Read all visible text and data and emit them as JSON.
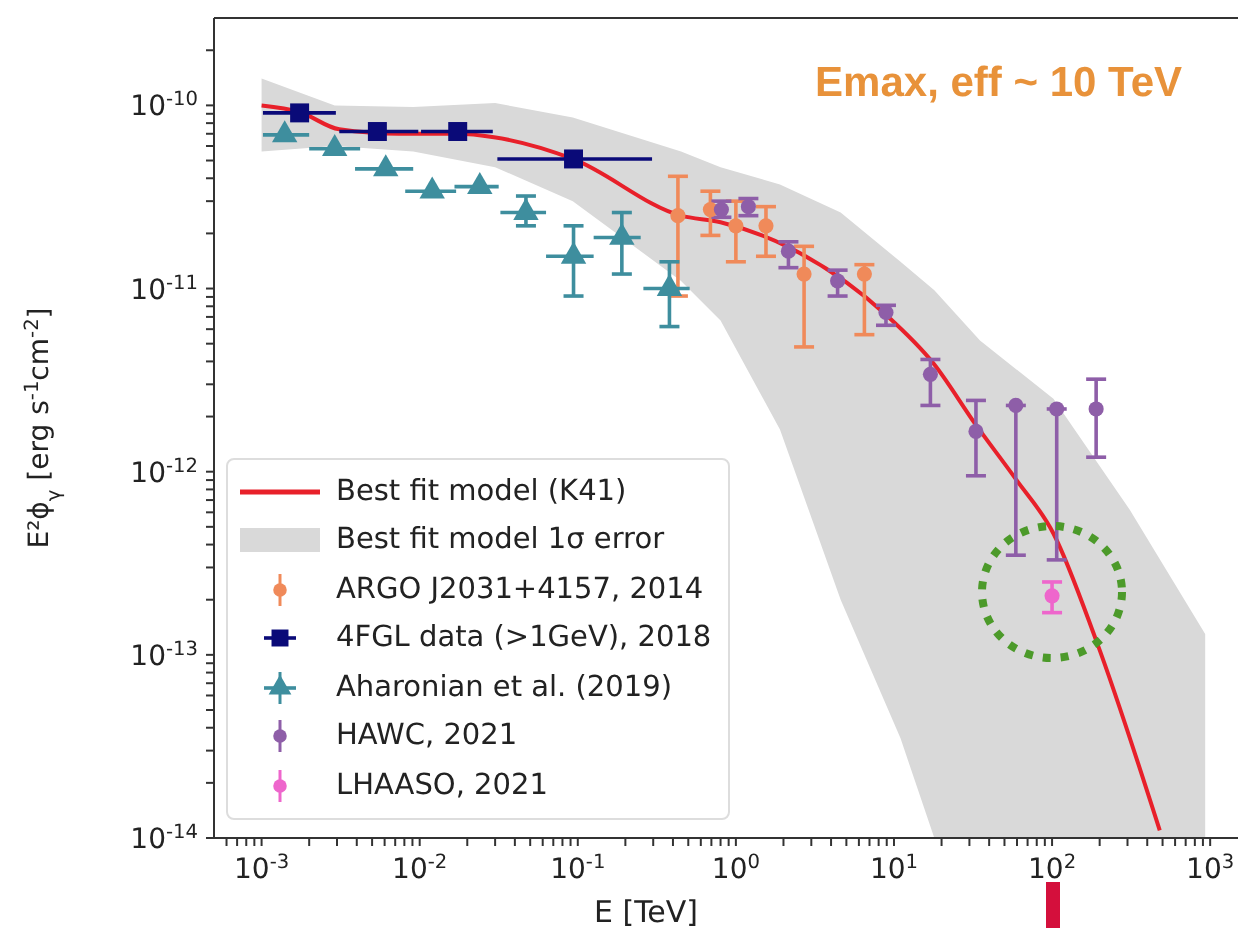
{
  "chart_data": {
    "type": "scatter",
    "xlabel": "E [TeV]",
    "ylabel": "E²ϕ$_{γ}$ [erg s$^{-1}$cm$^{-2}$]",
    "log": "xy",
    "legend": "bottom left",
    "annotations": [
      "Emax, eff ~ 10 TeV"
    ],
    "xlim": [
      0.0005,
      1500
    ],
    "ylim": [
      1e-14,
      3e-10
    ],
    "xticks": [
      {
        "value": 0.0006,
        "label": null
      },
      {
        "value": 0.0007,
        "label": null
      },
      {
        "value": 0.0008,
        "label": null
      },
      {
        "value": 0.0009,
        "label": null
      },
      {
        "value": 0.001,
        "label": "10$^{-3}$"
      },
      {
        "value": 0.002,
        "label": null
      },
      {
        "value": 0.003,
        "label": null
      },
      {
        "value": 0.004,
        "label": null
      },
      {
        "value": 0.005,
        "label": null
      },
      {
        "value": 0.006,
        "label": null
      },
      {
        "value": 0.007,
        "label": null
      },
      {
        "value": 0.008,
        "label": null
      },
      {
        "value": 0.009,
        "label": null
      },
      {
        "value": 0.01,
        "label": "10$^{-2}$"
      },
      {
        "value": 0.02,
        "label": null
      },
      {
        "value": 0.03,
        "label": null
      },
      {
        "value": 0.04,
        "label": null
      },
      {
        "value": 0.05,
        "label": null
      },
      {
        "value": 0.06,
        "label": null
      },
      {
        "value": 0.07,
        "label": null
      },
      {
        "value": 0.08,
        "label": null
      },
      {
        "value": 0.09,
        "label": null
      },
      {
        "value": 0.1,
        "label": "10$^{-1}$"
      },
      {
        "value": 0.2,
        "label": null
      },
      {
        "value": 0.3,
        "label": null
      },
      {
        "value": 0.4,
        "label": null
      },
      {
        "value": 0.5,
        "label": null
      },
      {
        "value": 0.6,
        "label": null
      },
      {
        "value": 0.7,
        "label": null
      },
      {
        "value": 0.8,
        "label": null
      },
      {
        "value": 0.9,
        "label": null
      },
      {
        "value": 1,
        "label": "10$^{0}$"
      },
      {
        "value": 2,
        "label": null
      },
      {
        "value": 3,
        "label": null
      },
      {
        "value": 4,
        "label": null
      },
      {
        "value": 5,
        "label": null
      },
      {
        "value": 6,
        "label": null
      },
      {
        "value": 7,
        "label": null
      },
      {
        "value": 8,
        "label": null
      },
      {
        "value": 9,
        "label": null
      },
      {
        "value": 10,
        "label": "10$^{1}$"
      },
      {
        "value": 20,
        "label": null
      },
      {
        "value": 30,
        "label": null
      },
      {
        "value": 40,
        "label": null
      },
      {
        "value": 50,
        "label": null
      },
      {
        "value": 60,
        "label": null
      },
      {
        "value": 70,
        "label": null
      },
      {
        "value": 80,
        "label": null
      },
      {
        "value": 90,
        "label": null
      },
      {
        "value": 100,
        "label": "10$^{2}$"
      },
      {
        "value": 200,
        "label": null
      },
      {
        "value": 300,
        "label": null
      },
      {
        "value": 400,
        "label": null
      },
      {
        "value": 500,
        "label": null
      },
      {
        "value": 600,
        "label": null
      },
      {
        "value": 700,
        "label": null
      },
      {
        "value": 800,
        "label": null
      },
      {
        "value": 900,
        "label": null
      },
      {
        "value": 1000,
        "label": "10$^{3}$"
      }
    ],
    "yticks": [
      {
        "value": 1e-14,
        "label": "10$^{-14}$"
      },
      {
        "value": 2e-14,
        "label": null
      },
      {
        "value": 3e-14,
        "label": null
      },
      {
        "value": 4e-14,
        "label": null
      },
      {
        "value": 5e-14,
        "label": null
      },
      {
        "value": 6e-14,
        "label": null
      },
      {
        "value": 7e-14,
        "label": null
      },
      {
        "value": 8e-14,
        "label": null
      },
      {
        "value": 9e-14,
        "label": null
      },
      {
        "value": 1e-13,
        "label": "10$^{-13}$"
      },
      {
        "value": 2e-13,
        "label": null
      },
      {
        "value": 3e-13,
        "label": null
      },
      {
        "value": 4e-13,
        "label": null
      },
      {
        "value": 5e-13,
        "label": null
      },
      {
        "value": 6e-13,
        "label": null
      },
      {
        "value": 7e-13,
        "label": null
      },
      {
        "value": 8e-13,
        "label": null
      },
      {
        "value": 9e-13,
        "label": null
      },
      {
        "value": 1e-12,
        "label": "10$^{-12}$"
      },
      {
        "value": 2e-12,
        "label": null
      },
      {
        "value": 3e-12,
        "label": null
      },
      {
        "value": 4e-12,
        "label": null
      },
      {
        "value": 5e-12,
        "label": null
      },
      {
        "value": 6e-12,
        "label": null
      },
      {
        "value": 7e-12,
        "label": null
      },
      {
        "value": 8e-12,
        "label": null
      },
      {
        "value": 9e-12,
        "label": null
      },
      {
        "value": 1e-11,
        "label": "10$^{-11}$"
      },
      {
        "value": 2e-11,
        "label": null
      },
      {
        "value": 3e-11,
        "label": null
      },
      {
        "value": 4e-11,
        "label": null
      },
      {
        "value": 5e-11,
        "label": null
      },
      {
        "value": 6e-11,
        "label": null
      },
      {
        "value": 7e-11,
        "label": null
      },
      {
        "value": 8e-11,
        "label": null
      },
      {
        "value": 9e-11,
        "label": null
      },
      {
        "value": 1e-10,
        "label": "10$^{-10}$"
      },
      {
        "value": 2e-10,
        "label": null
      }
    ],
    "series": [
      {
        "name": "Best fit model (K41)",
        "type": "line",
        "color": "#e8202a",
        "marker": "none",
        "line_style": "solid",
        "x": [
          0.001,
          0.00174,
          0.0031,
          0.0074,
          0.0174,
          0.0295,
          0.093,
          0.45,
          0.8,
          2.1,
          8.9,
          17.8,
          33,
          59,
          102,
          190,
          480
        ],
        "values": [
          1e-10,
          9.2e-11,
          7.4e-11,
          7e-11,
          7e-11,
          6.7e-11,
          5.1e-11,
          2.5e-11,
          2.3e-11,
          1.7e-11,
          7.2e-12,
          3.9e-12,
          1.8e-12,
          9.1e-13,
          4.6e-13,
          1.2e-13,
          1.1e-14
        ]
      },
      {
        "name": "Best fit model 1σ error",
        "type": "line",
        "color": "#d9d9d9",
        "x": [
          0.001,
          0.0029,
          0.0091,
          0.03,
          0.093,
          0.45,
          0.8,
          1.9,
          4.6,
          11,
          18,
          35,
          102,
          310,
          930
        ],
        "values": [
          null,
          null,
          null,
          null,
          null,
          null,
          null,
          null,
          null,
          null,
          null,
          null,
          null,
          null,
          null
        ],
        "upper": [
          1.4e-10,
          1e-10,
          9.8e-11,
          1.03e-10,
          8.6e-11,
          5.6e-11,
          4.6e-11,
          3.7e-11,
          2.6e-11,
          1.4e-11,
          9.8e-12,
          5.2e-12,
          2.5e-12,
          6.2e-13,
          1.3e-13
        ],
        "lower": [
          5.6e-11,
          6e-11,
          5.6e-11,
          4.6e-11,
          3e-11,
          1.1e-11,
          6.7e-12,
          1.7e-12,
          2e-13,
          3.5e-14,
          1e-14,
          1e-14,
          1e-14,
          1e-14,
          1e-14
        ]
      },
      {
        "name": "ARGO J2031+4157, 2014",
        "color": "#f08a5a",
        "marker": "circle",
        "x": [
          0.43,
          0.69,
          1.0,
          1.55,
          2.7,
          6.5
        ],
        "values": [
          2.5e-11,
          2.7e-11,
          2.2e-11,
          2.2e-11,
          1.2e-11,
          1.2e-11
        ],
        "errors": [
          [
            9.1e-12,
            4.1e-11
          ],
          [
            1.95e-11,
            3.4e-11
          ],
          [
            1.4e-11,
            3e-11
          ],
          [
            1.5e-11,
            2.8e-11
          ],
          [
            4.8e-12,
            1.7e-11
          ],
          [
            5.6e-12,
            1.35e-11
          ]
        ]
      },
      {
        "name": "4FGL data (>1GeV), 2018",
        "color": "#0a0a78",
        "marker": "square",
        "x": [
          0.00174,
          0.0054,
          0.0174,
          0.094
        ],
        "values": [
          9.1e-11,
          7.2e-11,
          7.2e-11,
          5.1e-11
        ],
        "xerrors": [
          [
            0.00102,
            0.00295
          ],
          [
            0.0031,
            0.0098
          ],
          [
            0.0102,
            0.029
          ],
          [
            0.031,
            0.295
          ]
        ]
      },
      {
        "name": "Aharonian et al. (2019)",
        "color": "#3e8e9e",
        "marker": "triangle",
        "x": [
          0.0014,
          0.0029,
          0.0061,
          0.012,
          0.024,
          0.047,
          0.094,
          0.19,
          0.38
        ],
        "values": [
          6.9e-11,
          5.8e-11,
          4.5e-11,
          3.4e-11,
          3.6e-11,
          2.6e-11,
          1.5e-11,
          1.9e-11,
          1e-11
        ],
        "xerrors": [
          [
            0.00102,
            0.002
          ],
          [
            0.002,
            0.0042
          ],
          [
            0.0039,
            0.0091
          ],
          [
            0.0081,
            0.017
          ],
          [
            0.0166,
            0.0316
          ],
          [
            0.0324,
            0.063
          ],
          [
            0.063,
            0.126
          ],
          [
            0.126,
            0.25
          ],
          [
            0.26,
            0.51
          ]
        ],
        "errors": [
          null,
          null,
          null,
          null,
          null,
          [
            2.2e-11,
            3.2e-11
          ],
          [
            9.1e-12,
            2.2e-11
          ],
          [
            1.2e-11,
            2.6e-11
          ],
          [
            6.2e-12,
            1.4e-11
          ]
        ]
      },
      {
        "name": "HAWC, 2021",
        "color": "#8e5ea8",
        "marker": "circle",
        "x": [
          0.81,
          1.2,
          2.15,
          4.4,
          8.9,
          17,
          33,
          59,
          107,
          190
        ],
        "values": [
          2.7e-11,
          2.8e-11,
          1.6e-11,
          1.1e-11,
          7.4e-12,
          3.4e-12,
          1.66e-12,
          2.3e-12,
          2.2e-12,
          2.2e-12
        ],
        "errors": [
          [
            2.45e-11,
            3e-11
          ],
          [
            2.5e-11,
            3.1e-11
          ],
          [
            1.3e-11,
            1.8e-11
          ],
          [
            9.1e-12,
            1.26e-11
          ],
          [
            6.3e-12,
            8.1e-12
          ],
          [
            2.3e-12,
            4.1e-12
          ],
          [
            9.5e-13,
            2.45e-12
          ],
          [
            3.5e-13,
            2.3e-12
          ],
          [
            3.3e-13,
            2.2e-12
          ],
          [
            1.2e-12,
            3.2e-12
          ]
        ]
      },
      {
        "name": "LHAASO, 2021",
        "color": "#ee66cc",
        "marker": "circle",
        "x": [
          100
        ],
        "values": [
          2.1e-13
        ],
        "errors": [
          [
            1.7e-13,
            2.5e-13
          ]
        ]
      }
    ]
  }
}
